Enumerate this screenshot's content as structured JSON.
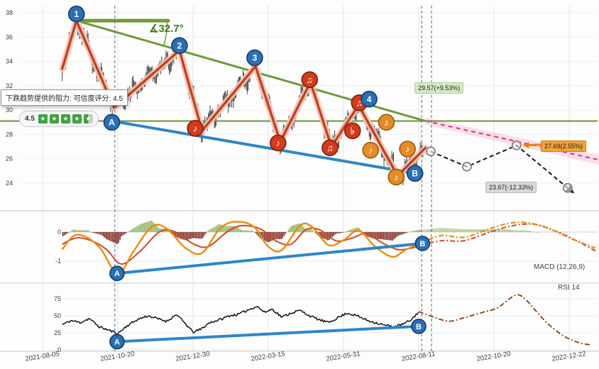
{
  "tooltip": {
    "text": "下跌趋势提供的阻力: 可信度评分: 4.5"
  },
  "toolbar": {
    "score": "4.5",
    "star": "★"
  },
  "labels": {
    "angle": "∡32.7°",
    "target_up": "29.57(+9.53%)",
    "target_mid": "27.69(2.55%)",
    "target_down": "23.67(-12.33%)",
    "macd": "MACD (12,26,9)",
    "rsi": "RSI 14"
  },
  "colors": {
    "green": "#6f9a37",
    "blue": "#2e86c8",
    "zig": "#c23d20",
    "zig_halo": "#f5c5b4",
    "marker_blue": "#2a70b8",
    "marker_blue_edge": "#123a66",
    "note_red": "#d33b1d",
    "note_red_edge": "#7f1e08",
    "note_orange": "#e78b29",
    "note_orange_edge": "#96590c",
    "pink": "#d63384",
    "pink_band": "rgba(236,64,122,0.16)",
    "forecast": "#161616",
    "ring": "#8a8a8a",
    "hist_pos": "#8cb45c",
    "hist_neg": "#80281a",
    "macd_line": "#ee8a0e",
    "signal_line": "#cf4a25",
    "rsi_line": "#101010",
    "future_rsi": "#8a3c0c",
    "vline": "#5f7388",
    "grid": "#e3e3e3",
    "axis_text": "#3a3a3a"
  },
  "chart_data": [
    {
      "id": "price",
      "type": "line",
      "title": "",
      "x_ticks": [
        "2021-08-05",
        "2021-10-20",
        "2021-12-30",
        "2022-03-15",
        "2022-05-31",
        "2022-08-11",
        "2022-10-20",
        "2022-12-22"
      ],
      "y_ticks": [
        38,
        36,
        34,
        32,
        30,
        28,
        26,
        24
      ],
      "ylim": [
        23,
        38.5
      ],
      "resistance_level": 29.1,
      "vlines_t": [
        0.96,
        5.04,
        5.17
      ],
      "series": [
        {
          "name": "zigzag",
          "points": [
            [
              0.26,
              33.4
            ],
            [
              0.45,
              37.35
            ],
            [
              0.95,
              30.2
            ],
            [
              1.82,
              34.9
            ],
            [
              2.12,
              28.3
            ],
            [
              2.83,
              33.6
            ],
            [
              3.16,
              27.4
            ],
            [
              3.56,
              32.3
            ],
            [
              3.84,
              27.0
            ],
            [
              4.2,
              30.4
            ],
            [
              4.72,
              24.6
            ],
            [
              5.09,
              26.9
            ]
          ]
        },
        {
          "name": "downtrend",
          "points": [
            [
              0.45,
              37.35
            ],
            [
              5.09,
              29.1
            ]
          ]
        },
        {
          "name": "angle_base",
          "points": [
            [
              0.45,
              37.35
            ],
            [
              1.67,
              37.35
            ]
          ]
        },
        {
          "name": "support_ab",
          "points": [
            [
              0.92,
              29.1
            ],
            [
              4.95,
              24.8
            ]
          ]
        },
        {
          "name": "resistance_ext",
          "points": [
            [
              5.09,
              29.1
            ],
            [
              7.55,
              25.7
            ]
          ]
        },
        {
          "name": "forecast",
          "points": [
            [
              5.16,
              26.6
            ],
            [
              5.64,
              25.35
            ],
            [
              6.3,
              27.1
            ],
            [
              6.98,
              23.6
            ]
          ]
        }
      ],
      "markers": [
        {
          "label": "1",
          "t": 0.45,
          "v": 37.9
        },
        {
          "label": "2",
          "t": 1.82,
          "v": 35.3
        },
        {
          "label": "3",
          "t": 2.82,
          "v": 34.3
        },
        {
          "label": "4",
          "t": 4.34,
          "v": 30.9
        },
        {
          "label": "A",
          "t": 0.92,
          "v": 29.0
        },
        {
          "label": "B",
          "t": 4.95,
          "v": 24.8
        }
      ],
      "notes": [
        {
          "glyph": "♪",
          "t": 2.03,
          "v": 28.5,
          "color": "red"
        },
        {
          "glyph": "♪",
          "t": 3.13,
          "v": 27.3,
          "color": "red"
        },
        {
          "glyph": "♫",
          "t": 3.55,
          "v": 32.5,
          "color": "red"
        },
        {
          "glyph": "♫",
          "t": 3.82,
          "v": 26.9,
          "color": "red"
        },
        {
          "glyph": "♭",
          "t": 4.12,
          "v": 28.3,
          "color": "red"
        },
        {
          "glyph": "♫",
          "t": 4.21,
          "v": 30.6,
          "color": "red"
        },
        {
          "glyph": "♪",
          "t": 4.36,
          "v": 26.7,
          "color": "orange"
        },
        {
          "glyph": "♪",
          "t": 4.57,
          "v": 29.0,
          "color": "orange"
        },
        {
          "glyph": "♪",
          "t": 4.7,
          "v": 24.5,
          "color": "orange"
        },
        {
          "glyph": "♪",
          "t": 4.85,
          "v": 26.8,
          "color": "orange"
        }
      ]
    },
    {
      "id": "macd",
      "type": "line",
      "y_ticks": [
        0,
        -1
      ],
      "series": [
        {
          "name": "macd_line",
          "points": [
            [
              0.26,
              -0.6
            ],
            [
              0.42,
              -0.12
            ],
            [
              0.6,
              -0.2
            ],
            [
              0.78,
              -0.6
            ],
            [
              1.0,
              -1.45
            ],
            [
              1.2,
              -0.7
            ],
            [
              1.45,
              0.18
            ],
            [
              1.65,
              0.12
            ],
            [
              1.9,
              -0.55
            ],
            [
              2.12,
              -0.72
            ],
            [
              2.35,
              0.1
            ],
            [
              2.55,
              0.35
            ],
            [
              2.8,
              0.2
            ],
            [
              3.0,
              -0.5
            ],
            [
              3.18,
              -0.62
            ],
            [
              3.42,
              0.22
            ],
            [
              3.58,
              0.18
            ],
            [
              3.8,
              -0.45
            ],
            [
              4.0,
              -0.28
            ],
            [
              4.2,
              0.05
            ],
            [
              4.42,
              -0.5
            ],
            [
              4.65,
              -0.85
            ],
            [
              4.82,
              -0.62
            ],
            [
              5.0,
              -0.4
            ]
          ]
        },
        {
          "name": "signal_line",
          "points": [
            [
              0.26,
              -0.42
            ],
            [
              0.45,
              -0.2
            ],
            [
              0.65,
              -0.3
            ],
            [
              0.85,
              -0.6
            ],
            [
              1.05,
              -1.1
            ],
            [
              1.3,
              -0.65
            ],
            [
              1.55,
              0.0
            ],
            [
              1.75,
              0.02
            ],
            [
              2.0,
              -0.4
            ],
            [
              2.2,
              -0.5
            ],
            [
              2.45,
              0.0
            ],
            [
              2.65,
              0.22
            ],
            [
              2.9,
              0.1
            ],
            [
              3.1,
              -0.3
            ],
            [
              3.3,
              -0.42
            ],
            [
              3.5,
              0.08
            ],
            [
              3.68,
              0.08
            ],
            [
              3.9,
              -0.3
            ],
            [
              4.1,
              -0.22
            ],
            [
              4.3,
              -0.05
            ],
            [
              4.5,
              -0.35
            ],
            [
              4.72,
              -0.6
            ],
            [
              4.9,
              -0.55
            ],
            [
              5.0,
              -0.48
            ]
          ]
        },
        {
          "name": "macd_future",
          "points": [
            [
              5.0,
              -0.4
            ],
            [
              5.3,
              -0.12
            ],
            [
              5.6,
              -0.18
            ],
            [
              5.95,
              0.12
            ],
            [
              6.2,
              0.3
            ],
            [
              6.45,
              0.32
            ],
            [
              6.75,
              0.1
            ],
            [
              7.05,
              -0.25
            ],
            [
              7.35,
              -0.55
            ]
          ]
        },
        {
          "name": "signal_future",
          "points": [
            [
              5.0,
              -0.48
            ],
            [
              5.3,
              -0.3
            ],
            [
              5.6,
              -0.3
            ],
            [
              5.95,
              0.0
            ],
            [
              6.25,
              0.22
            ],
            [
              6.55,
              0.26
            ],
            [
              6.85,
              0.0
            ],
            [
              7.1,
              -0.3
            ],
            [
              7.35,
              -0.65
            ]
          ]
        },
        {
          "name": "support_ab",
          "points": [
            [
              0.99,
              -1.42
            ],
            [
              5.05,
              -0.39
            ]
          ]
        }
      ],
      "markers": [
        {
          "label": "A",
          "t": 0.99,
          "v": -1.42
        },
        {
          "label": "B",
          "t": 5.05,
          "v": -0.39
        }
      ]
    },
    {
      "id": "rsi",
      "type": "line",
      "y_ticks": [
        75,
        50,
        25,
        0
      ],
      "series": [
        {
          "name": "rsi_line",
          "points": [
            [
              0.26,
              37
            ],
            [
              0.38,
              43
            ],
            [
              0.5,
              40
            ],
            [
              0.62,
              46
            ],
            [
              0.75,
              34
            ],
            [
              0.9,
              28
            ],
            [
              1.0,
              24
            ],
            [
              1.12,
              35
            ],
            [
              1.25,
              44
            ],
            [
              1.4,
              50
            ],
            [
              1.52,
              46
            ],
            [
              1.65,
              42
            ],
            [
              1.78,
              52
            ],
            [
              1.9,
              38
            ],
            [
              2.0,
              26
            ],
            [
              2.1,
              30
            ],
            [
              2.22,
              40
            ],
            [
              2.35,
              44
            ],
            [
              2.48,
              50
            ],
            [
              2.6,
              52
            ],
            [
              2.72,
              58
            ],
            [
              2.85,
              64
            ],
            [
              2.95,
              55
            ],
            [
              3.05,
              60
            ],
            [
              3.18,
              48
            ],
            [
              3.3,
              54
            ],
            [
              3.42,
              58
            ],
            [
              3.55,
              50
            ],
            [
              3.68,
              44
            ],
            [
              3.8,
              40
            ],
            [
              3.92,
              47
            ],
            [
              4.05,
              54
            ],
            [
              4.18,
              50
            ],
            [
              4.3,
              44
            ],
            [
              4.42,
              40
            ],
            [
              4.55,
              36
            ],
            [
              4.68,
              34
            ],
            [
              4.8,
              38
            ],
            [
              4.9,
              44
            ],
            [
              5.0,
              56
            ]
          ]
        },
        {
          "name": "rsi_future",
          "points": [
            [
              5.0,
              56
            ],
            [
              5.2,
              48
            ],
            [
              5.4,
              42
            ],
            [
              5.6,
              47
            ],
            [
              5.85,
              55
            ],
            [
              6.05,
              62
            ],
            [
              6.28,
              80
            ],
            [
              6.4,
              76
            ],
            [
              6.55,
              58
            ],
            [
              6.7,
              40
            ],
            [
              6.85,
              26
            ],
            [
              7.0,
              16
            ],
            [
              7.15,
              10
            ],
            [
              7.3,
              7
            ]
          ]
        },
        {
          "name": "support_ab",
          "points": [
            [
              0.99,
              12
            ],
            [
              5.0,
              34.5
            ]
          ]
        }
      ],
      "markers": [
        {
          "label": "A",
          "t": 0.99,
          "v": 12
        },
        {
          "label": "B",
          "t": 5.0,
          "v": 34.5
        }
      ]
    }
  ]
}
